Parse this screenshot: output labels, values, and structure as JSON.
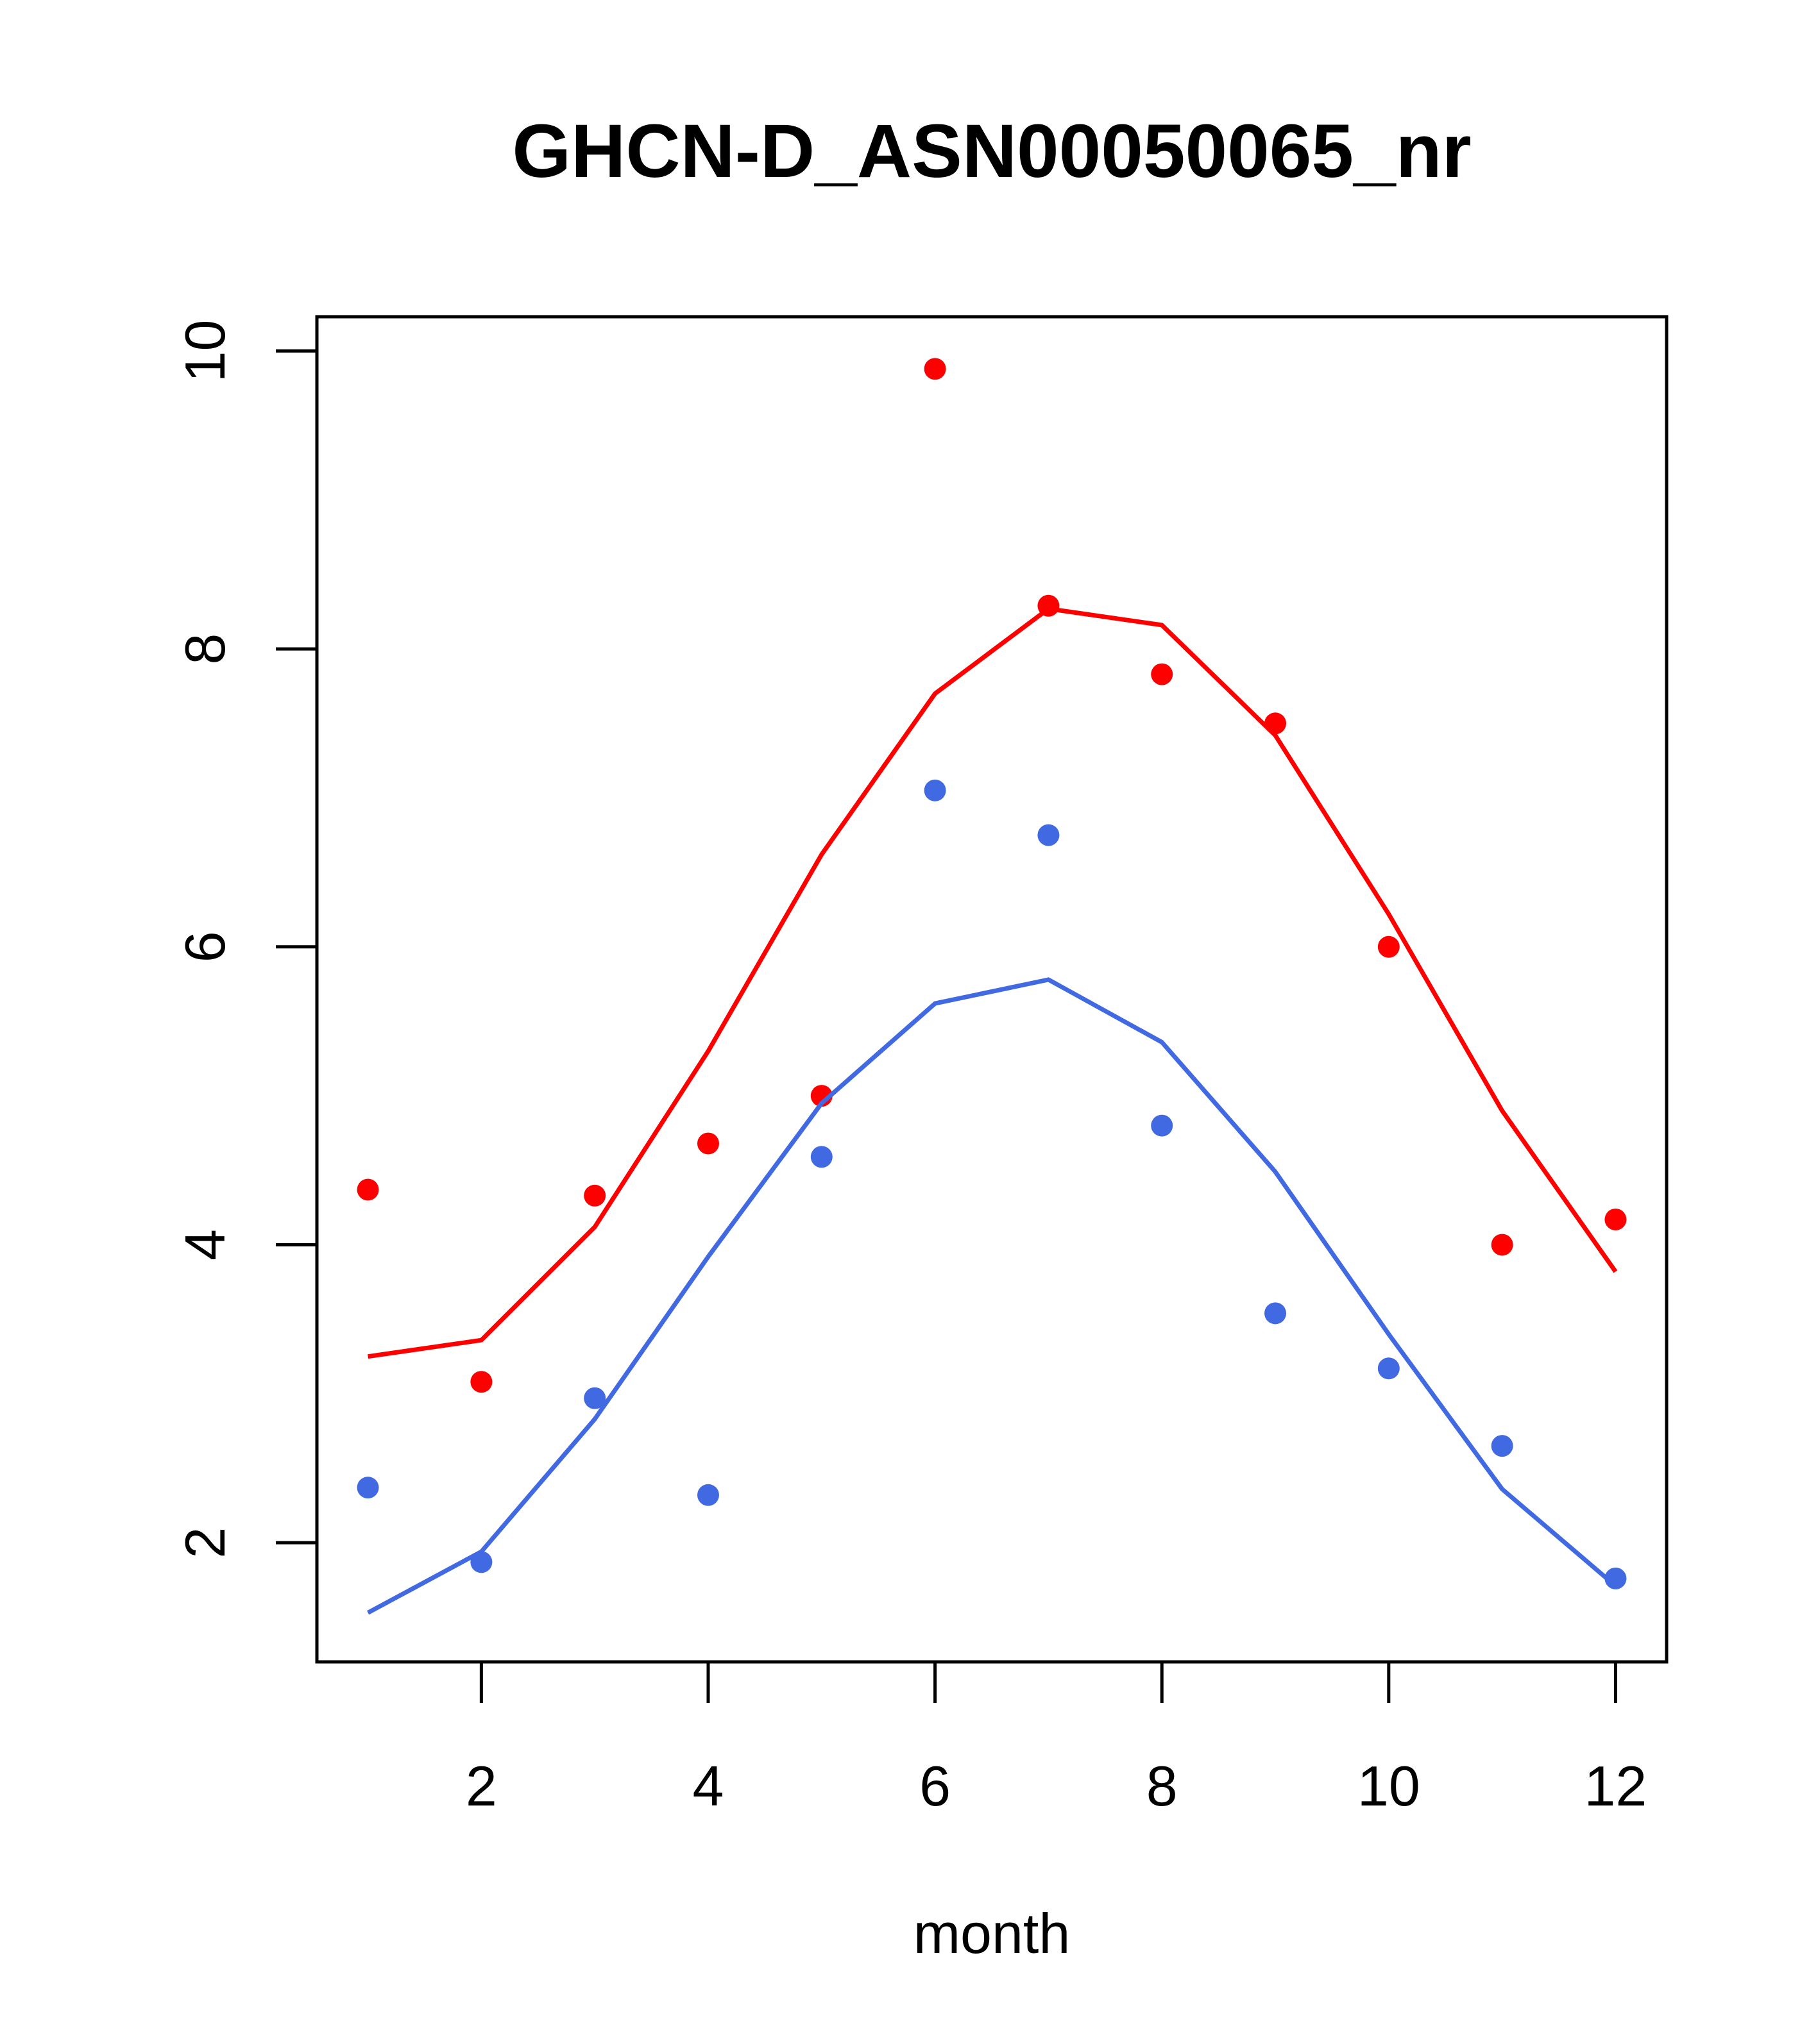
{
  "chart_data": {
    "type": "scatter",
    "title": "GHCN-D_ASN00050065_nr",
    "xlabel": "month",
    "ylabel": "",
    "xlim": [
      0.55,
      12.45
    ],
    "ylim": [
      1.2,
      10.23
    ],
    "xticks": [
      2,
      4,
      6,
      8,
      10,
      12
    ],
    "yticks": [
      2,
      4,
      6,
      8,
      10
    ],
    "x": [
      1,
      2,
      3,
      4,
      5,
      6,
      7,
      8,
      9,
      10,
      11,
      12
    ],
    "series": [
      {
        "color": "#ff0000",
        "points": [
          4.37,
          3.08,
          4.33,
          4.68,
          5.0,
          9.88,
          8.29,
          7.83,
          7.5,
          6.0,
          4.0,
          4.17
        ],
        "line": [
          3.25,
          3.36,
          4.12,
          5.3,
          6.62,
          7.7,
          8.27,
          8.16,
          7.42,
          6.22,
          4.9,
          3.82
        ]
      },
      {
        "color": "#4169e1",
        "points": [
          2.37,
          1.87,
          2.97,
          2.32,
          4.59,
          7.05,
          6.75,
          4.8,
          3.54,
          3.17,
          2.65,
          1.76
        ],
        "line": [
          1.53,
          1.94,
          2.83,
          3.92,
          4.95,
          5.62,
          5.78,
          5.36,
          4.49,
          3.4,
          2.36,
          1.71
        ]
      }
    ],
    "grid": false,
    "legend": false
  }
}
